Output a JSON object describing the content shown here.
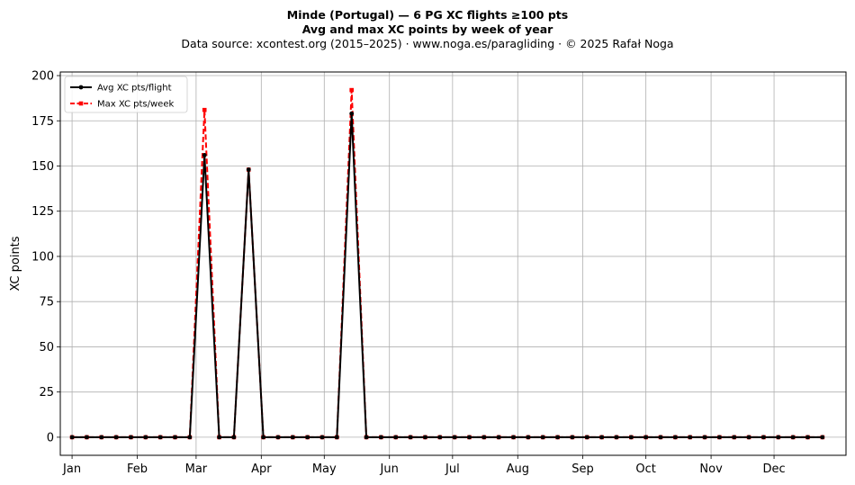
{
  "header": {
    "title_line1": "Minde (Portugal)  —  6 PG XC flights ≥100 pts",
    "title_line2": "Avg and max XC points by week of year",
    "subtitle": "Data source: xcontest.org (2015–2025)  ·  www.noga.es/paragliding  ·  © 2025 Rafał Noga"
  },
  "chart_data": {
    "type": "line",
    "title": "Minde (Portugal)  —  6 PG XC flights ≥100 pts\nAvg and max XC points by week of year",
    "subtitle": "Data source: xcontest.org (2015–2025)  ·  www.noga.es/paragliding  ·  © 2025 Rafał Noga",
    "xlabel": "",
    "ylabel": "XC points",
    "x_unit": "week of year",
    "x": [
      1,
      2,
      3,
      4,
      5,
      6,
      7,
      8,
      9,
      10,
      11,
      12,
      13,
      14,
      15,
      16,
      17,
      18,
      19,
      20,
      21,
      22,
      23,
      24,
      25,
      26,
      27,
      28,
      29,
      30,
      31,
      32,
      33,
      34,
      35,
      36,
      37,
      38,
      39,
      40,
      41,
      42,
      43,
      44,
      45,
      46,
      47,
      48,
      49,
      50,
      51,
      52
    ],
    "x_ticks": [
      {
        "label": "Jan",
        "week": 1
      },
      {
        "label": "Feb",
        "week": 5.43
      },
      {
        "label": "Mar",
        "week": 9.43
      },
      {
        "label": "Apr",
        "week": 13.86
      },
      {
        "label": "May",
        "week": 18.14
      },
      {
        "label": "Jun",
        "week": 22.57
      },
      {
        "label": "Jul",
        "week": 26.86
      },
      {
        "label": "Aug",
        "week": 31.29
      },
      {
        "label": "Sep",
        "week": 35.71
      },
      {
        "label": "Oct",
        "week": 40
      },
      {
        "label": "Nov",
        "week": 44.43
      },
      {
        "label": "Dec",
        "week": 48.71
      }
    ],
    "xlim": [
      0.2,
      53.6
    ],
    "ylim": [
      -10,
      202
    ],
    "y_ticks": [
      0,
      25,
      50,
      75,
      100,
      125,
      150,
      175,
      200
    ],
    "grid": true,
    "legend_position": "top-left",
    "series": [
      {
        "name": "Avg XC pts/flight",
        "color": "#000000",
        "style": "solid",
        "marker": "circle",
        "values": [
          0,
          0,
          0,
          0,
          0,
          0,
          0,
          0,
          0,
          156,
          0,
          0,
          148,
          0,
          0,
          0,
          0,
          0,
          0,
          179,
          0,
          0,
          0,
          0,
          0,
          0,
          0,
          0,
          0,
          0,
          0,
          0,
          0,
          0,
          0,
          0,
          0,
          0,
          0,
          0,
          0,
          0,
          0,
          0,
          0,
          0,
          0,
          0,
          0,
          0,
          0,
          0
        ]
      },
      {
        "name": "Max XC pts/week",
        "color": "#ff0000",
        "style": "dashed",
        "marker": "square",
        "values": [
          0,
          0,
          0,
          0,
          0,
          0,
          0,
          0,
          0,
          181,
          0,
          0,
          148,
          0,
          0,
          0,
          0,
          0,
          0,
          192,
          0,
          0,
          0,
          0,
          0,
          0,
          0,
          0,
          0,
          0,
          0,
          0,
          0,
          0,
          0,
          0,
          0,
          0,
          0,
          0,
          0,
          0,
          0,
          0,
          0,
          0,
          0,
          0,
          0,
          0,
          0,
          0
        ]
      }
    ]
  }
}
